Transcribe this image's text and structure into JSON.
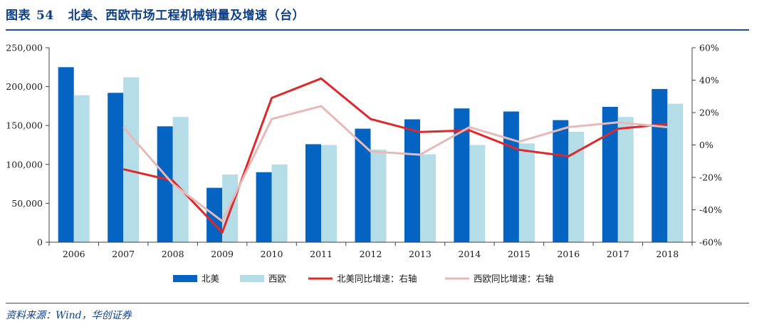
{
  "figure": {
    "label": "图表",
    "number": "54",
    "title": "北美、西欧市场工程机械销量及增速（台）",
    "source": "资料来源：Wind，华创证券"
  },
  "chart_data": {
    "type": "bar",
    "title": "北美、西欧市场工程机械销量及增速（台）",
    "categories": [
      "2006",
      "2007",
      "2008",
      "2009",
      "2010",
      "2011",
      "2012",
      "2013",
      "2014",
      "2015",
      "2016",
      "2017",
      "2018"
    ],
    "series": [
      {
        "name": "北美",
        "kind": "bar",
        "axis": "left",
        "color": "#0563c1",
        "values": [
          225000,
          192000,
          149000,
          70000,
          90000,
          126000,
          146000,
          158000,
          172000,
          168000,
          157000,
          174000,
          197000
        ]
      },
      {
        "name": "西欧",
        "kind": "bar",
        "axis": "left",
        "color": "#b4dde8",
        "values": [
          189000,
          212000,
          161000,
          87000,
          100000,
          125000,
          119000,
          113000,
          125000,
          127000,
          142000,
          161000,
          178000
        ]
      },
      {
        "name": "北美同比增速：右轴",
        "kind": "line",
        "axis": "right",
        "color": "#e0272a",
        "values": [
          null,
          -15,
          -22,
          -54,
          29,
          41,
          16,
          8,
          9,
          -3,
          -7,
          10,
          13
        ]
      },
      {
        "name": "西欧同比增速：右轴",
        "kind": "line",
        "axis": "right",
        "color": "#e8b9b9",
        "values": [
          null,
          11,
          -24,
          -47,
          16,
          24,
          -4,
          -6,
          11,
          2,
          11,
          14,
          11
        ]
      }
    ],
    "y_left": {
      "min": 0,
      "max": 250000,
      "step": 50000,
      "tick_labels": [
        "0",
        "50,000",
        "100,000",
        "150,000",
        "200,000",
        "250,000"
      ]
    },
    "y_right": {
      "min": -60,
      "max": 60,
      "step": 20,
      "tick_labels": [
        "-60%",
        "-40%",
        "-20%",
        "0%",
        "20%",
        "40%",
        "60%"
      ]
    },
    "legend_position": "bottom",
    "grid": false
  }
}
